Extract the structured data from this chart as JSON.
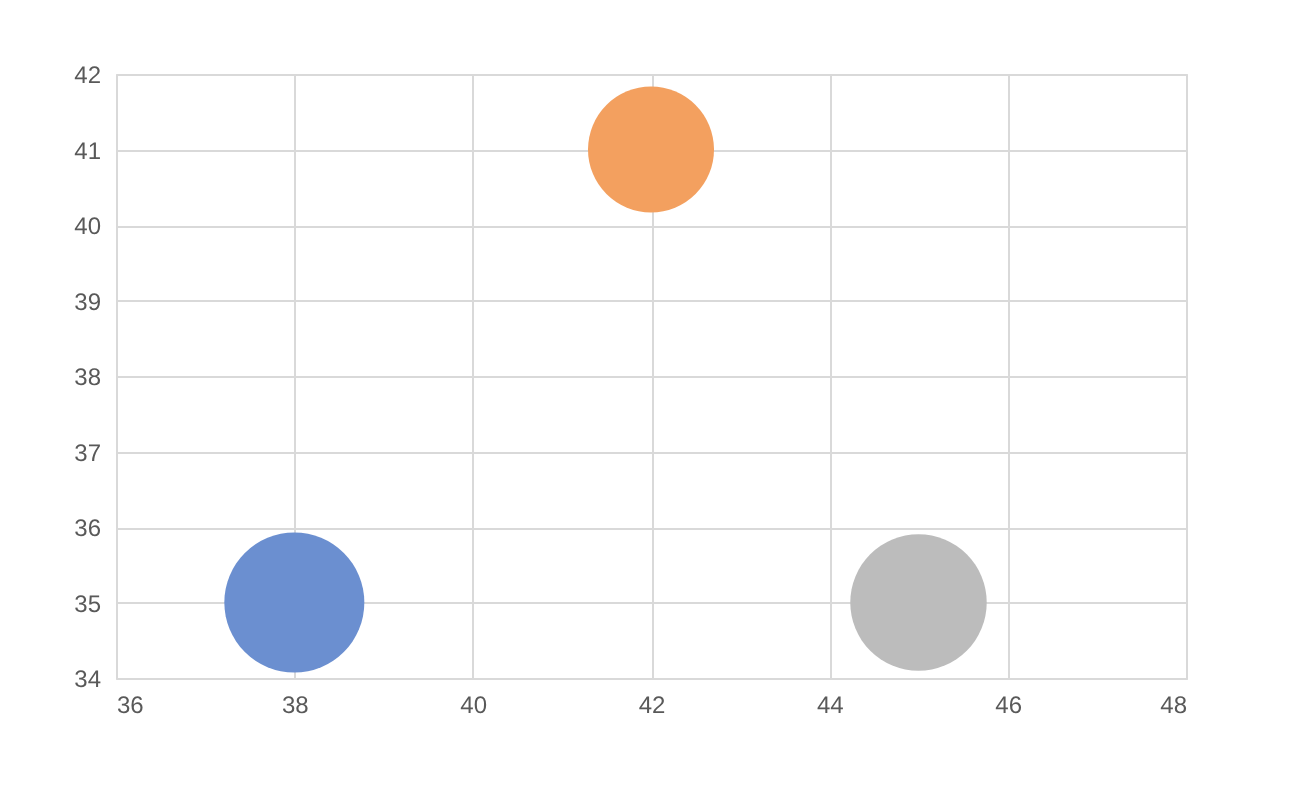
{
  "chart_data": {
    "type": "bubble",
    "series": [
      {
        "color": "#6b8fd0",
        "x": [
          38
        ],
        "values": [
          35
        ],
        "sizes": [
          1
        ]
      },
      {
        "color": "#f3a05f",
        "x": [
          42
        ],
        "values": [
          41
        ],
        "sizes": [
          0.81
        ]
      },
      {
        "color": "#bcbcbc",
        "x": [
          45
        ],
        "values": [
          35
        ],
        "sizes": [
          0.95
        ]
      }
    ],
    "xlim": [
      36,
      48
    ],
    "xticks": [
      36,
      38,
      40,
      42,
      44,
      46,
      48
    ],
    "ylim": [
      34,
      42
    ],
    "yticks": [
      34,
      35,
      36,
      37,
      38,
      39,
      40,
      41,
      42
    ],
    "grid": true,
    "legend": false
  }
}
